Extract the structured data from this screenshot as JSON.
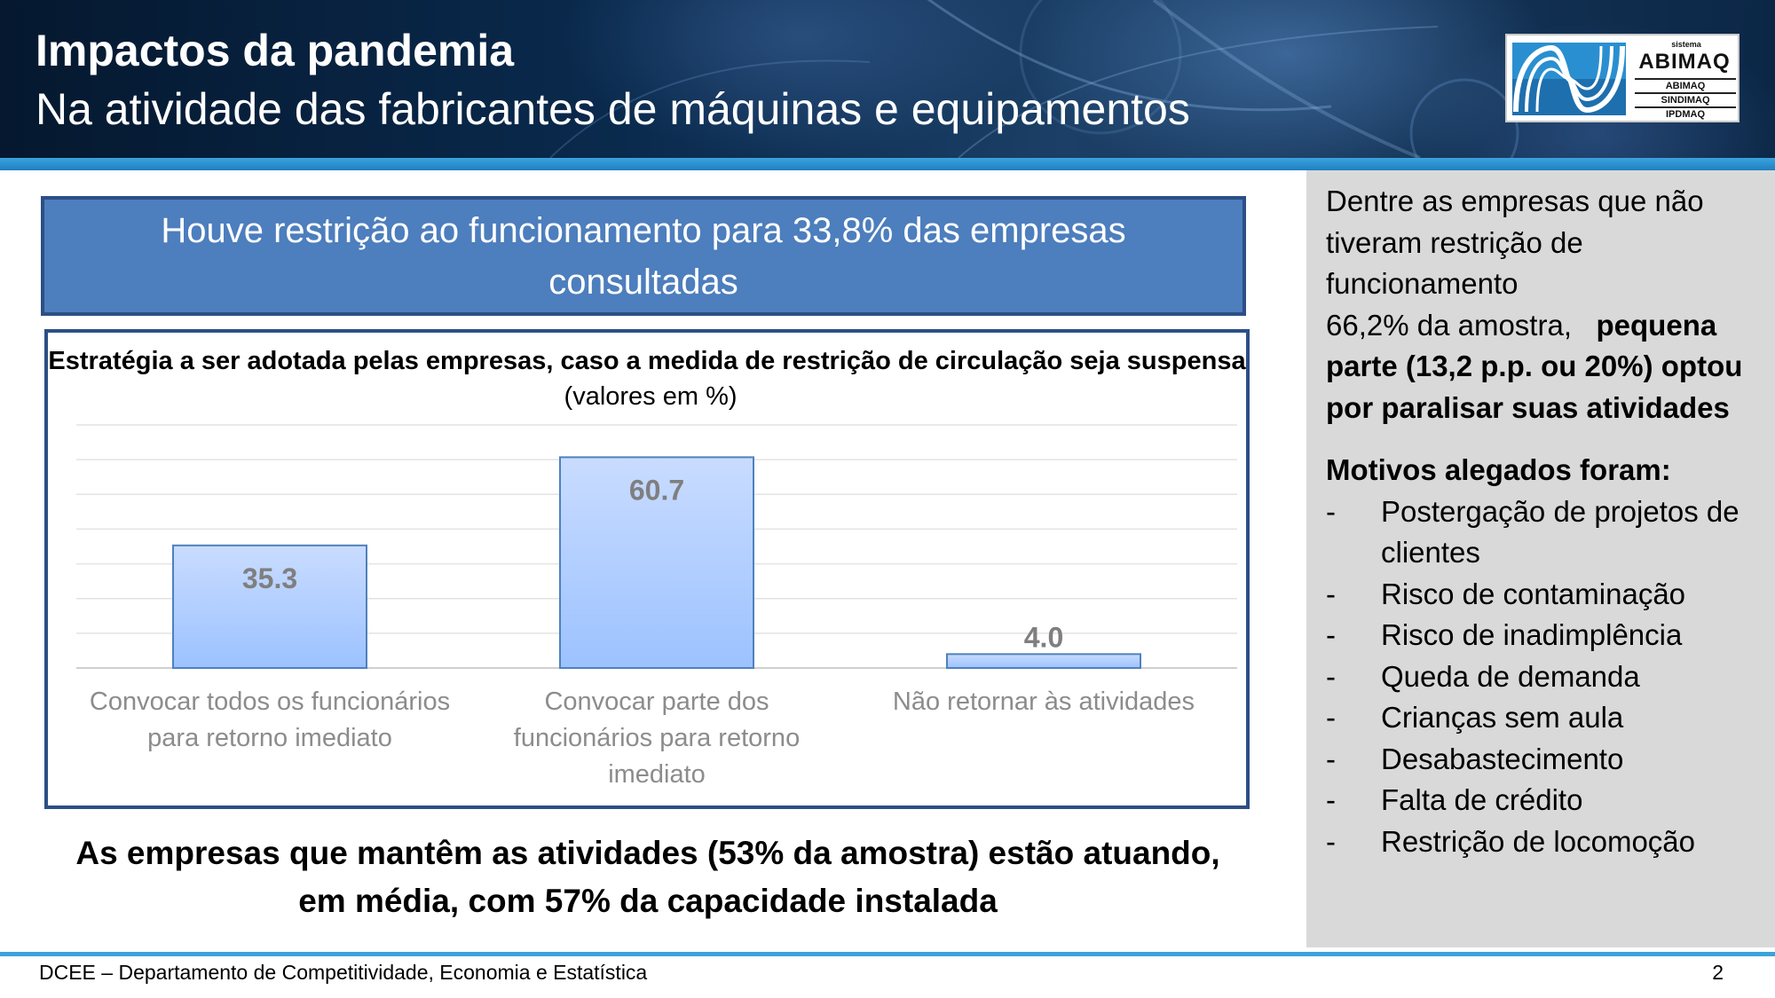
{
  "header": {
    "title": "Impactos da pandemia",
    "subtitle": "Na atividade das fabricantes de máquinas e equipamentos"
  },
  "logo": {
    "small": "sistema",
    "big": "ABIMAQ",
    "rows": [
      "ABIMAQ",
      "SINDIMAQ",
      "IPDMAQ"
    ]
  },
  "headline": "Houve restrição ao funcionamento para 33,8% das empresas consultadas",
  "chart_data": {
    "type": "bar",
    "title_bold": "Estratégia a ser adotada pelas empresas, caso a medida de restrição de circulação seja suspensa",
    "title_normal": "(valores em %)",
    "categories": [
      [
        "Convocar todos os funcionários",
        "para retorno imediato"
      ],
      [
        "Convocar parte dos",
        "funcionários para retorno",
        "imediato"
      ],
      [
        "Não retornar às atividades"
      ]
    ],
    "values": [
      35.3,
      60.7,
      4.0
    ],
    "data_labels": [
      "35.3",
      "60.7",
      "4.0"
    ],
    "ylim": [
      0,
      70
    ],
    "grid": true,
    "legend": "none",
    "bar_color_top": "#c9dcff",
    "bar_color_bottom": "#9cc2ff",
    "bar_border": "#4f81bd"
  },
  "bottom_statement": "As empresas que mantêm as atividades (53% da amostra) estão atuando, em média, com 57% da capacidade instalada",
  "side_panel": {
    "intro_lines": [
      "Dentre as empresas que não",
      "tiveram restrição de",
      "funcionamento"
    ],
    "sample_text": "66,2% da amostra,",
    "bold_text": "pequena parte (13,2 p.p. ou 20%) optou por paralisar suas atividades",
    "reasons_title": "Motivos alegados foram:",
    "reasons": [
      "Postergação de projetos de clientes",
      "Risco de contaminação",
      "Risco de inadimplência",
      "Queda de demanda",
      "Crianças sem aula",
      "Desabastecimento",
      "Falta de crédito",
      "Restrição de locomoção"
    ]
  },
  "footer": {
    "text": "DCEE – Departamento de Competitividade, Economia e Estatística",
    "page": "2"
  }
}
